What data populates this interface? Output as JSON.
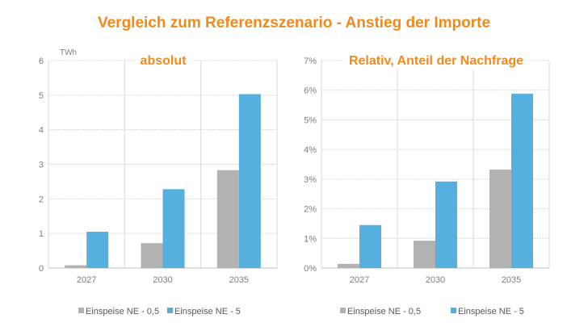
{
  "title": "Vergleich zum Referenzszenario - Anstieg der Importe",
  "colors": {
    "title": "#F08A1C",
    "gray": "#B2B2B2",
    "blue": "#56B0DF",
    "grid": "#D9D9D9",
    "text": "#7F7F7F"
  },
  "chart_data": [
    {
      "type": "bar",
      "title": "absolut",
      "ylabel": "TWh",
      "categories": [
        "2027",
        "2030",
        "2035"
      ],
      "ylim": [
        0,
        6
      ],
      "yticks": [
        "0",
        "1",
        "2",
        "3",
        "4",
        "5",
        "6"
      ],
      "grid": true,
      "legend": "bottom",
      "series": [
        {
          "name": "Einspeise NE - 0,5",
          "color": "#B2B2B2",
          "values": [
            0.08,
            0.72,
            2.83
          ]
        },
        {
          "name": "Einspeise NE - 5",
          "color": "#56B0DF",
          "values": [
            1.05,
            2.28,
            5.03
          ]
        }
      ]
    },
    {
      "type": "bar",
      "title": "Relativ, Anteil der Nachfrage",
      "categories": [
        "2027",
        "2030",
        "2035"
      ],
      "ylim": [
        0,
        7
      ],
      "yticks": [
        "0%",
        "1%",
        "2%",
        "3%",
        "4%",
        "5%",
        "6%",
        "7%"
      ],
      "grid": true,
      "legend": "bottom",
      "series": [
        {
          "name": "Einspeise NE - 0,5",
          "color": "#B2B2B2",
          "values": [
            0.14,
            0.92,
            3.32
          ]
        },
        {
          "name": "Einspeise NE - 5",
          "color": "#56B0DF",
          "values": [
            1.45,
            2.92,
            5.88
          ]
        }
      ]
    }
  ]
}
